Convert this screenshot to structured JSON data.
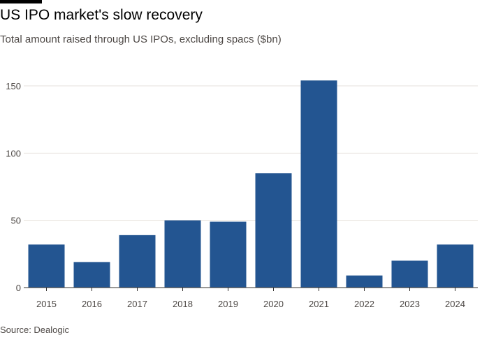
{
  "header": {
    "title": "US IPO market's slow recovery",
    "subtitle": "Total amount raised through US IPOs, excluding spacs ($bn)"
  },
  "footer": {
    "source": "Source: Dealogic"
  },
  "colors": {
    "bar": "#235591",
    "grid": "#e6e1dc",
    "axis": "#33302e"
  },
  "chart_data": {
    "type": "bar",
    "title": "US IPO market's slow recovery",
    "subtitle": "Total amount raised through US IPOs, excluding spacs ($bn)",
    "xlabel": "",
    "ylabel": "",
    "categories": [
      "2015",
      "2016",
      "2017",
      "2018",
      "2019",
      "2020",
      "2021",
      "2022",
      "2023",
      "2024"
    ],
    "values": [
      32,
      19,
      39,
      50,
      49,
      85,
      154,
      9,
      20,
      32
    ],
    "ylim": [
      0,
      160
    ],
    "yticks": [
      0,
      50,
      100,
      150
    ],
    "grid": true,
    "legend": null
  }
}
